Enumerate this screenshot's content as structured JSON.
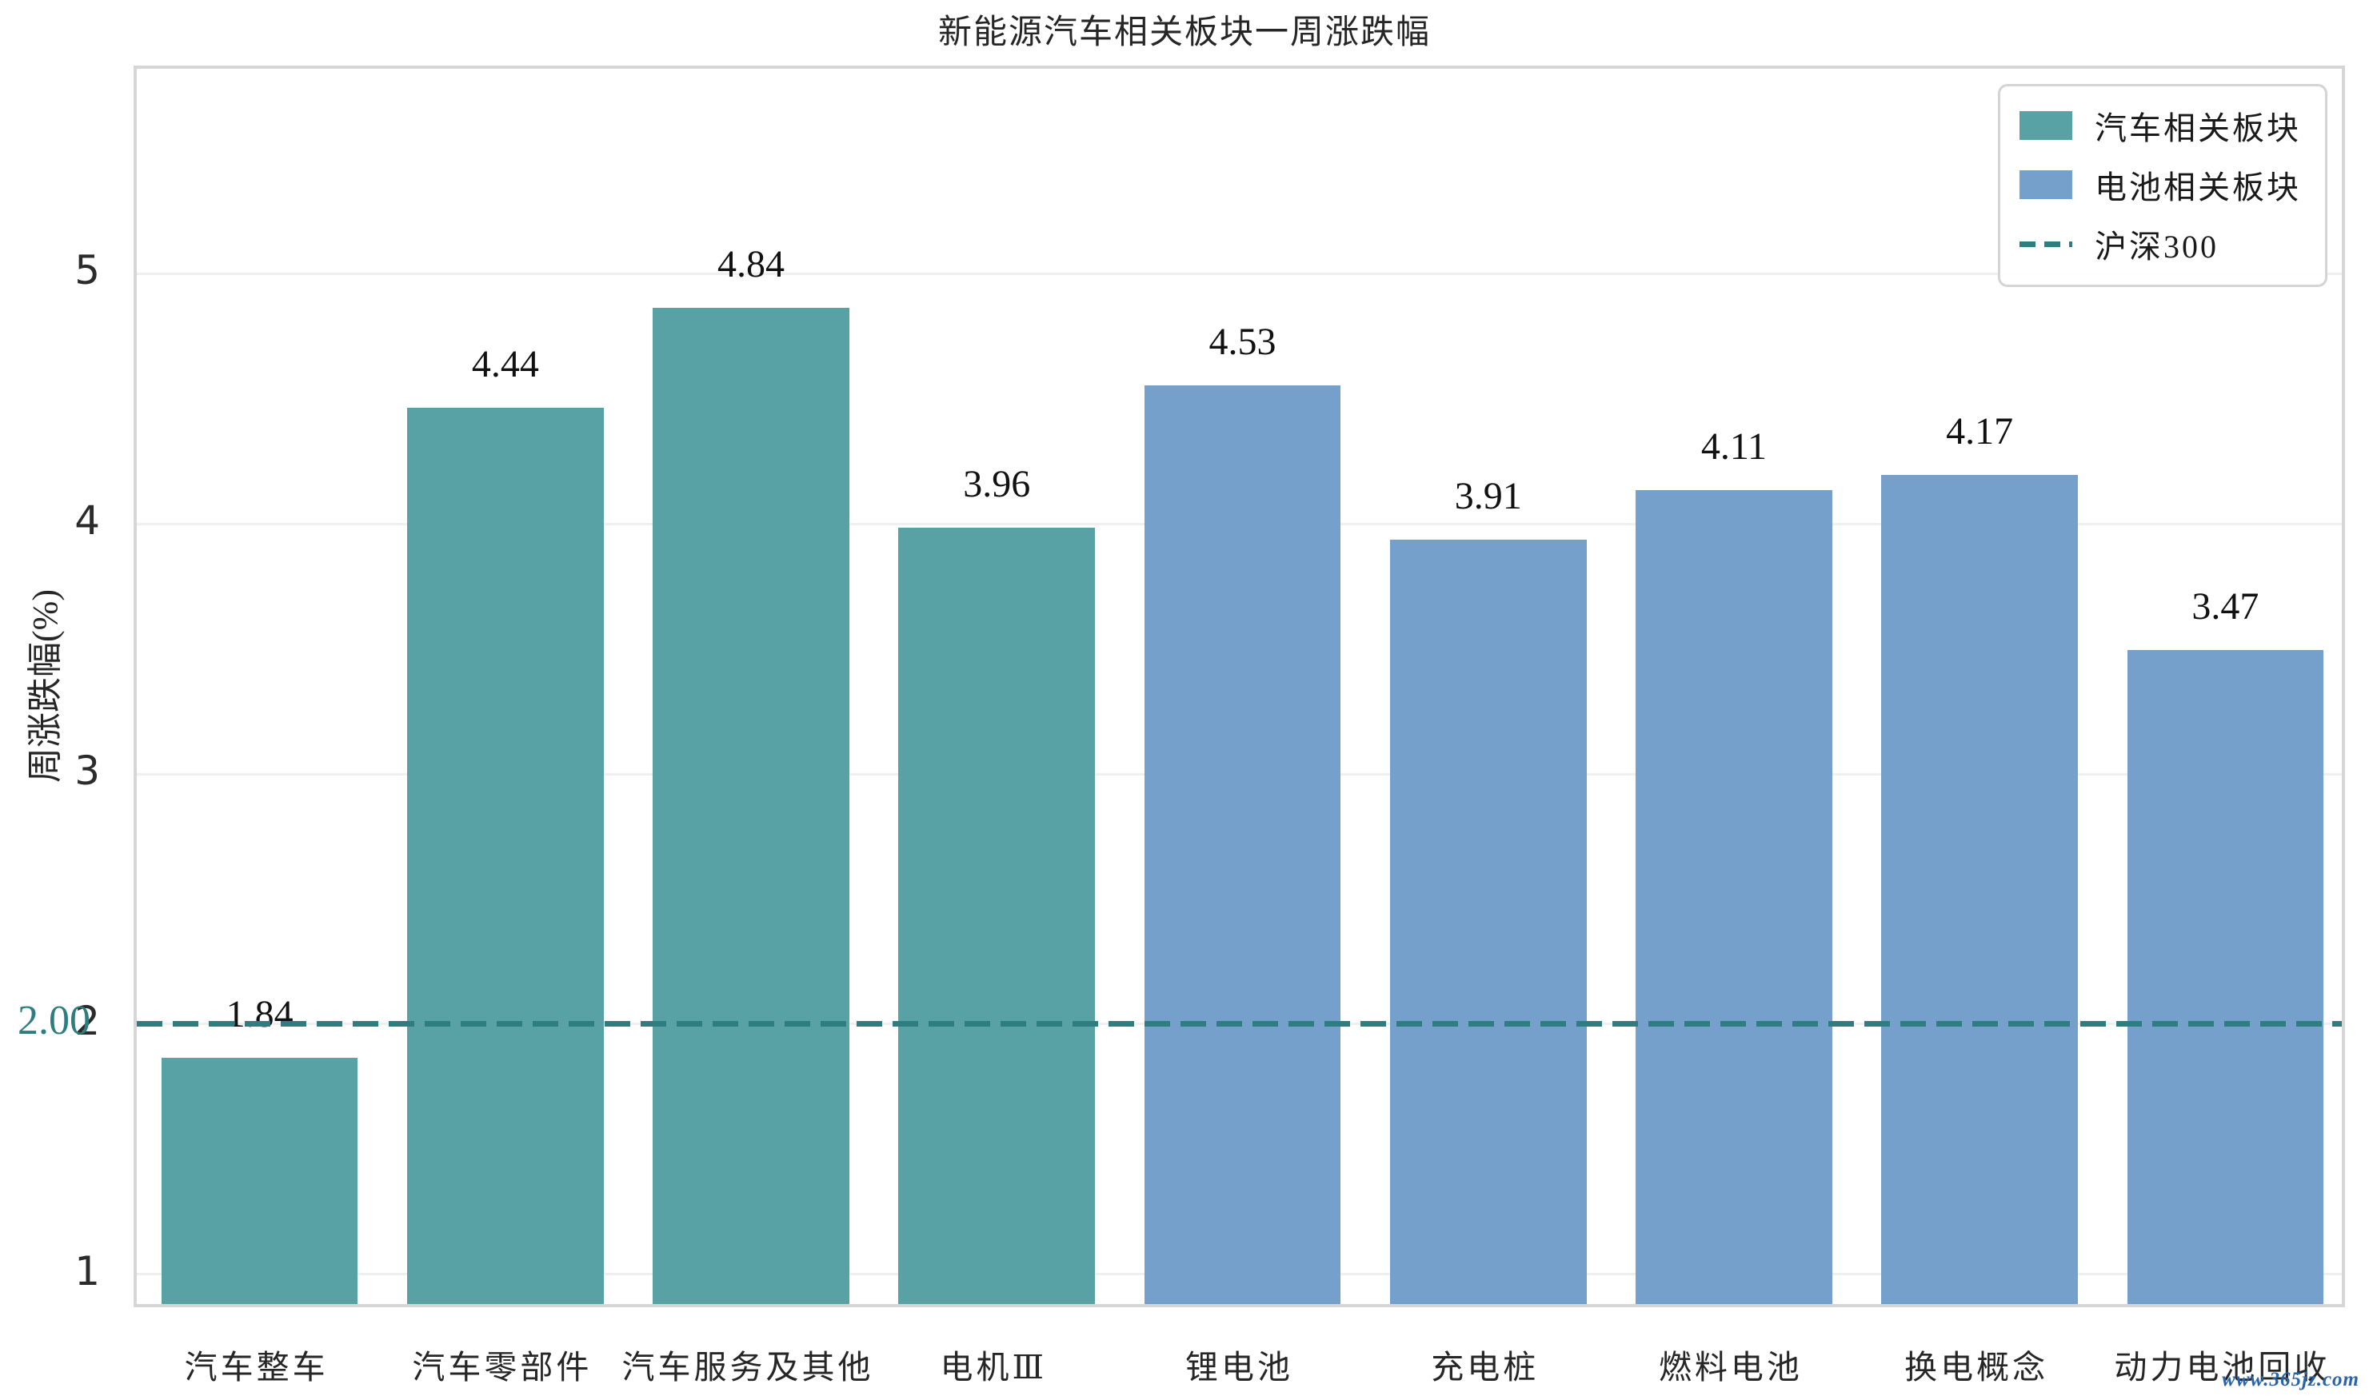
{
  "watermark": {
    "text": "www.365jz.com",
    "color": "#2a64a8"
  },
  "chart_data": {
    "type": "bar",
    "title": "新能源汽车相关板块一周涨跌幅",
    "xlabel": "",
    "ylabel": "周涨跌幅(%)",
    "categories": [
      "汽车整车",
      "汽车零部件",
      "汽车服务及其他",
      "电机Ⅲ",
      "锂电池",
      "充电桩",
      "燃料电池",
      "换电概念",
      "动力电池回收"
    ],
    "values": [
      1.84,
      4.44,
      4.84,
      3.96,
      4.53,
      3.91,
      4.11,
      4.17,
      3.47
    ],
    "bar_series_index": [
      0,
      0,
      0,
      0,
      1,
      1,
      1,
      1,
      1
    ],
    "series": [
      {
        "name": "汽车相关板块",
        "color": "#58a1a5",
        "categories": [
          "汽车整车",
          "汽车零部件",
          "汽车服务及其他",
          "电机Ⅲ"
        ],
        "values": [
          1.84,
          4.44,
          4.84,
          3.96
        ]
      },
      {
        "name": "电池相关板块",
        "color": "#74a0cb",
        "categories": [
          "锂电池",
          "充电桩",
          "燃料电池",
          "换电概念",
          "动力电池回收"
        ],
        "values": [
          4.53,
          3.91,
          4.11,
          4.17,
          3.47
        ]
      }
    ],
    "benchmark": {
      "name": "沪深300",
      "value": 2.0,
      "label_text": "2.00",
      "color": "#2e7d80",
      "style": "dashed"
    },
    "ylim": [
      0.855,
      5.82
    ],
    "yticks": [
      1,
      2,
      3,
      4,
      5
    ],
    "grid": true,
    "legend_position": "upper right",
    "colors": {
      "grid": "#efefef",
      "spine": "#d6d6d6",
      "tick_text": "#2b2b2b",
      "label_text": "#111111"
    }
  }
}
